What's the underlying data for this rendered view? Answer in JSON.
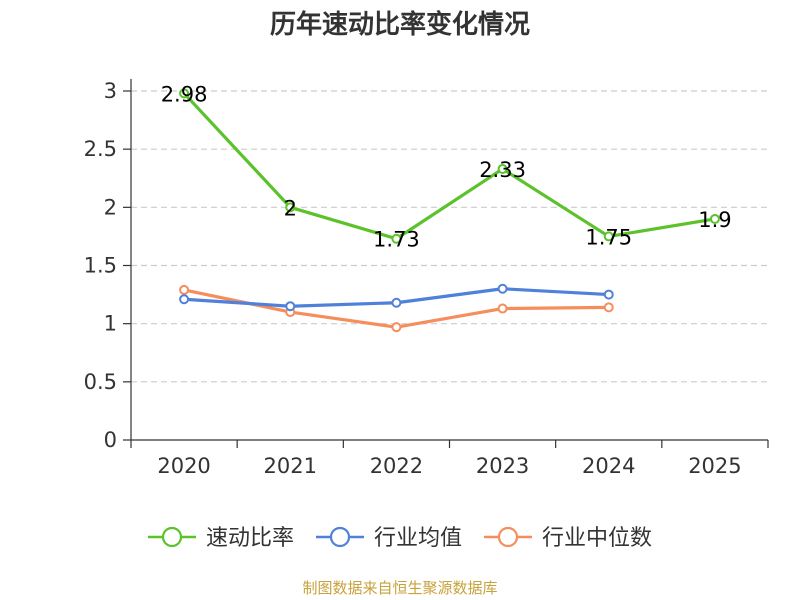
{
  "chart_data": {
    "type": "line",
    "title": "历年速动比率变化情况",
    "categories": [
      "2020",
      "2021",
      "2022",
      "2023",
      "2024",
      "2025"
    ],
    "yticks": [
      "0",
      "0.5",
      "1",
      "1.5",
      "2",
      "2.5",
      "3"
    ],
    "ylim": [
      0,
      3
    ],
    "xlabel": "",
    "ylabel": "",
    "grid": true,
    "legend_position": "bottom",
    "series": [
      {
        "name": "速动比率",
        "color": "#5cc22b",
        "values": [
          2.98,
          2.0,
          1.73,
          2.33,
          1.75,
          1.9
        ],
        "labels": [
          "2.98",
          "2",
          "1.73",
          "2.33",
          "1.75",
          "1.9"
        ],
        "show_labels": true
      },
      {
        "name": "行业均值",
        "color": "#4f81db",
        "values": [
          1.21,
          1.15,
          1.18,
          1.3,
          1.25,
          null
        ],
        "show_labels": false
      },
      {
        "name": "行业中位数",
        "color": "#f58d5c",
        "values": [
          1.29,
          1.1,
          0.97,
          1.13,
          1.14,
          null
        ],
        "show_labels": false
      }
    ]
  },
  "footer": {
    "source": "制图数据来自恒生聚源数据库"
  }
}
